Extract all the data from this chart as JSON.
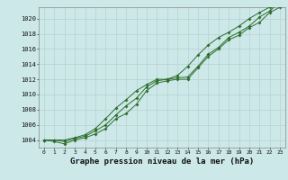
{
  "xlabel": "Graphe pression niveau de la mer (hPa)",
  "background_color": "#cce8e8",
  "grid_color": "#b0c8c8",
  "line_color": "#2d6e2d",
  "xlim": [
    -0.5,
    23.5
  ],
  "ylim": [
    1003.0,
    1021.5
  ],
  "yticks": [
    1004,
    1006,
    1008,
    1010,
    1012,
    1014,
    1016,
    1018,
    1020
  ],
  "xticks": [
    0,
    1,
    2,
    3,
    4,
    5,
    6,
    7,
    8,
    9,
    10,
    11,
    12,
    13,
    14,
    15,
    16,
    17,
    18,
    19,
    20,
    21,
    22,
    23
  ],
  "hours": [
    0,
    1,
    2,
    3,
    4,
    5,
    6,
    7,
    8,
    9,
    10,
    11,
    12,
    13,
    14,
    15,
    16,
    17,
    18,
    19,
    20,
    21,
    22,
    23
  ],
  "pressure_main": [
    1004.0,
    1004.0,
    1003.8,
    1004.2,
    1004.5,
    1005.2,
    1006.0,
    1007.3,
    1008.5,
    1009.5,
    1011.0,
    1011.8,
    1012.0,
    1012.2,
    1012.3,
    1013.7,
    1015.3,
    1016.2,
    1017.5,
    1018.2,
    1019.0,
    1020.2,
    1021.0,
    1022.2
  ],
  "pressure_high": [
    1004.0,
    1004.0,
    1004.0,
    1004.3,
    1004.7,
    1005.5,
    1006.8,
    1008.2,
    1009.3,
    1010.5,
    1011.3,
    1012.0,
    1012.0,
    1012.5,
    1013.7,
    1015.2,
    1016.5,
    1017.5,
    1018.2,
    1019.0,
    1020.0,
    1020.8,
    1021.5,
    1022.5
  ],
  "pressure_low": [
    1004.0,
    1003.8,
    1003.5,
    1004.0,
    1004.3,
    1004.8,
    1005.5,
    1006.8,
    1007.5,
    1008.7,
    1010.5,
    1011.5,
    1011.8,
    1012.0,
    1012.0,
    1013.5,
    1015.0,
    1016.0,
    1017.2,
    1017.8,
    1018.8,
    1019.5,
    1020.8,
    1021.5
  ]
}
